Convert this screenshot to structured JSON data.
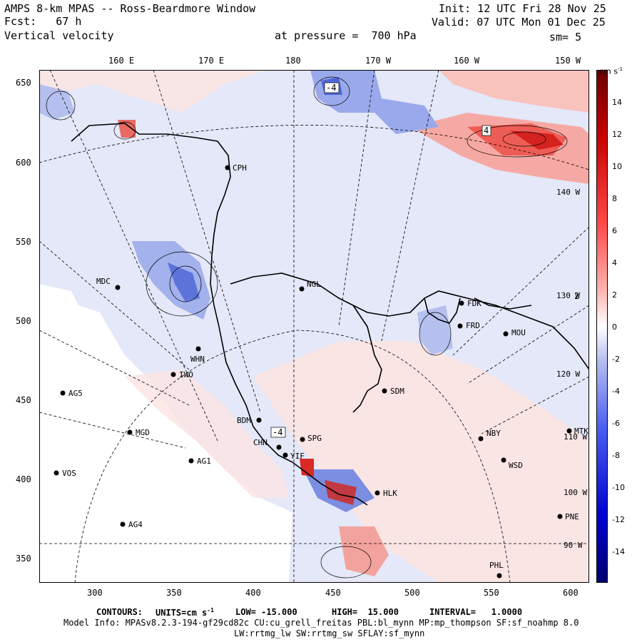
{
  "header": {
    "line1_left": "AMPS 8-km MPAS -- Ross-Beardmore Window",
    "line2_left": "Fcst:   67 h",
    "line3_left": "Vertical velocity",
    "line1_right": "Init: 12 UTC Fri 28 Nov 25",
    "line2_right": "Valid: 07 UTC Mon 01 Dec 25",
    "pressure": "at pressure =  700 hPa",
    "smoothing": "sm= 5"
  },
  "lon_labels": [
    "160 E",
    "170 E",
    "180",
    "170 W",
    "160 W",
    "150 W"
  ],
  "right_lon_labels": [
    "140 W",
    "130 W",
    "120 W",
    "110 W",
    "100 W",
    "90 W"
  ],
  "y_ticks": [
    "650",
    "600",
    "550",
    "500",
    "450",
    "400",
    "350"
  ],
  "x_ticks": [
    "300",
    "350",
    "400",
    "450",
    "500",
    "550",
    "600"
  ],
  "colorbar": {
    "unit": "cm s",
    "unit_exp": "-1",
    "labels": [
      "14",
      "12",
      "10",
      "8",
      "6",
      "4",
      "2",
      "0",
      "-2",
      "-4",
      "-6",
      "-8",
      "-10",
      "-12",
      "-14"
    ]
  },
  "stations": [
    {
      "code": "CPH"
    },
    {
      "code": "NGL"
    },
    {
      "code": "MDC"
    },
    {
      "code": "WHN"
    },
    {
      "code": "IWO"
    },
    {
      "code": "AG5"
    },
    {
      "code": "MGD"
    },
    {
      "code": "AG1"
    },
    {
      "code": "VOS"
    },
    {
      "code": "AG4"
    },
    {
      "code": "BDM"
    },
    {
      "code": "SPG"
    },
    {
      "code": "CHN"
    },
    {
      "code": "YIF"
    },
    {
      "code": "HLK"
    },
    {
      "code": "SDM"
    },
    {
      "code": "FDK"
    },
    {
      "code": "FRD"
    },
    {
      "code": "MOU"
    },
    {
      "code": "NBY"
    },
    {
      "code": "MTK"
    },
    {
      "code": "WSD"
    },
    {
      "code": "PNE"
    },
    {
      "code": "PHL"
    }
  ],
  "contour_labels": [
    "-4",
    "4",
    "-4",
    "2"
  ],
  "footer": {
    "contours_label": "CONTOURS:",
    "units_label": "UNITS=cm s",
    "units_exp": "-1",
    "low": "LOW= -15.000",
    "high": "HIGH=  15.000",
    "interval": "INTERVAL=   1.0000",
    "model_info": "Model Info: MPASv8.2.3-194-gf29cd82c CU:cu_grell_freitas PBL:bl_mynn MP:mp_thompson SF:sf_noahmp 8.0",
    "physics": "LW:rrtmg_lw SW:rrtmg_sw SFLAY:sf_mynn"
  },
  "colors": {
    "positive": "#d81e1e",
    "negative": "#1f3fd0",
    "background_neg": "#e3e7f8",
    "background_pos": "#fde2e0"
  }
}
